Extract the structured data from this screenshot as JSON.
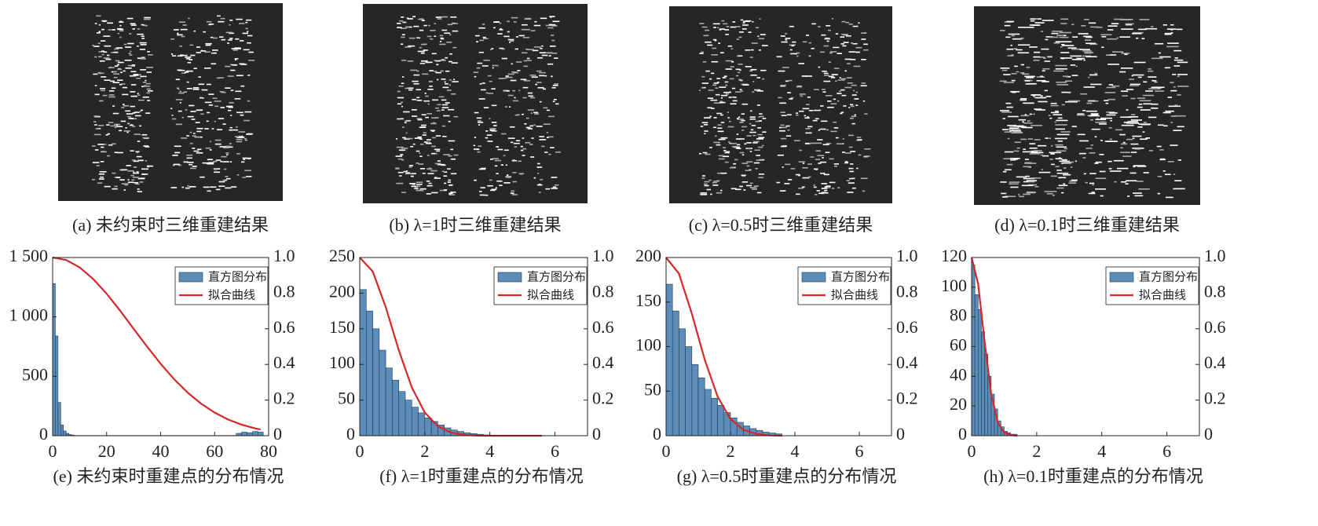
{
  "images": [
    {
      "caption": "(a) 未约束时三维重建结果"
    },
    {
      "caption": "(b) λ=1时三维重建结果"
    },
    {
      "caption": "(c) λ=0.5时三维重建结果"
    },
    {
      "caption": "(d) λ=0.1时三维重建结果"
    }
  ],
  "chart_data": [
    {
      "type": "histogram",
      "caption": "(e) 未约束时重建点的分布情况",
      "legend": "upper right",
      "bins": [
        0,
        1,
        2,
        3,
        4,
        5,
        6,
        7,
        8,
        68,
        70,
        72,
        74,
        76,
        78
      ],
      "xlim": [
        0,
        80
      ],
      "xticks": [
        0,
        20,
        40,
        60,
        80
      ],
      "ylim": [
        0,
        1500
      ],
      "yticks": [
        0,
        500,
        {
          "value": 1000,
          "label": "1 000"
        },
        {
          "value": 1500,
          "label": "1 500"
        }
      ],
      "y2lim": [
        0,
        1
      ],
      "y2ticks": [
        0,
        0.2,
        0.4,
        0.6,
        0.8,
        {
          "value": 1,
          "label": "1.0"
        }
      ],
      "series": [
        {
          "name": "直方图分布",
          "color": "#5b8db8",
          "values": [
            1280,
            840,
            280,
            90,
            40,
            20,
            10,
            5,
            2,
            20,
            30,
            25,
            35,
            30
          ]
        },
        {
          "name": "拟合曲线",
          "color": "#d62728",
          "axis": "y2",
          "x": [
            0,
            5,
            10,
            15,
            20,
            25,
            30,
            35,
            40,
            45,
            50,
            55,
            60,
            65,
            70,
            75,
            77
          ],
          "values": [
            1,
            0.986,
            0.945,
            0.88,
            0.797,
            0.702,
            0.6,
            0.5,
            0.404,
            0.317,
            0.242,
            0.18,
            0.13,
            0.091,
            0.062,
            0.041,
            0.035
          ]
        }
      ]
    },
    {
      "type": "histogram",
      "caption": "(f) λ=1时重建点的分布情况",
      "legend": "upper right",
      "bins": [
        0,
        0.2,
        0.4,
        0.6,
        0.8,
        1,
        1.2,
        1.4,
        1.6,
        1.8,
        2,
        2.2,
        2.4,
        2.6,
        2.8,
        3,
        3.2,
        3.4,
        3.6,
        3.8,
        4
      ],
      "xlim": [
        0,
        7
      ],
      "xticks": [
        0,
        2,
        4,
        6
      ],
      "ylim": [
        0,
        250
      ],
      "yticks": [
        0,
        50,
        100,
        150,
        200,
        250
      ],
      "y2lim": [
        0,
        1
      ],
      "y2ticks": [
        0,
        0.2,
        0.4,
        0.6,
        0.8,
        {
          "value": 1,
          "label": "1.0"
        }
      ],
      "series": [
        {
          "name": "直方图分布",
          "color": "#5b8db8",
          "values": [
            205,
            175,
            150,
            120,
            95,
            78,
            62,
            50,
            40,
            32,
            25,
            20,
            15,
            11,
            8,
            6,
            4,
            3,
            2,
            1
          ]
        },
        {
          "name": "拟合曲线",
          "color": "#d62728",
          "axis": "y2",
          "x": [
            0,
            0.4,
            0.8,
            1.2,
            1.6,
            2,
            2.4,
            2.8,
            3.2,
            3.6,
            4,
            4.4,
            4.8,
            5.2,
            5.6
          ],
          "values": [
            1,
            0.922,
            0.721,
            0.48,
            0.271,
            0.13,
            0.053,
            0.018,
            0.005,
            0.001,
            0,
            0,
            0,
            0,
            0
          ]
        }
      ]
    },
    {
      "type": "histogram",
      "caption": "(g) λ=0.5时重建点的分布情况",
      "legend": "upper right",
      "bins": [
        0,
        0.2,
        0.4,
        0.6,
        0.8,
        1,
        1.2,
        1.4,
        1.6,
        1.8,
        2,
        2.2,
        2.4,
        2.6,
        2.8,
        3,
        3.2,
        3.4,
        3.6
      ],
      "xlim": [
        0,
        7
      ],
      "xticks": [
        0,
        2,
        4,
        6
      ],
      "ylim": [
        0,
        200
      ],
      "yticks": [
        0,
        50,
        100,
        150,
        200
      ],
      "y2lim": [
        0,
        1
      ],
      "y2ticks": [
        0,
        0.2,
        0.4,
        0.6,
        0.8,
        {
          "value": 1,
          "label": "1.0"
        }
      ],
      "series": [
        {
          "name": "直方图分布",
          "color": "#5b8db8",
          "values": [
            170,
            140,
            120,
            100,
            80,
            65,
            52,
            42,
            34,
            26,
            20,
            15,
            11,
            8,
            6,
            4,
            3,
            2
          ]
        },
        {
          "name": "拟合曲线",
          "color": "#d62728",
          "axis": "y2",
          "x": [
            0,
            0.4,
            0.8,
            1.2,
            1.6,
            2,
            2.4,
            2.8,
            3.2,
            3.6
          ],
          "values": [
            1,
            0.91,
            0.685,
            0.427,
            0.22,
            0.094,
            0.033,
            0.01,
            0.002,
            0
          ]
        }
      ]
    },
    {
      "type": "histogram",
      "caption": "(h) λ=0.1时重建点的分布情况",
      "legend": "upper right",
      "bins": [
        0,
        0.1,
        0.2,
        0.3,
        0.4,
        0.5,
        0.6,
        0.7,
        0.8,
        0.9,
        1,
        1.1,
        1.2,
        1.3,
        1.4
      ],
      "xlim": [
        0,
        7
      ],
      "xticks": [
        0,
        2,
        4,
        6
      ],
      "ylim": [
        0,
        120
      ],
      "yticks": [
        0,
        20,
        40,
        60,
        80,
        100,
        120
      ],
      "y2lim": [
        0,
        1
      ],
      "y2ticks": [
        0,
        0.2,
        0.4,
        0.6,
        0.8,
        {
          "value": 1,
          "label": "1.0"
        }
      ],
      "series": [
        {
          "name": "直方图分布",
          "color": "#5b8db8",
          "values": [
            115,
            95,
            85,
            70,
            55,
            40,
            28,
            18,
            10,
            6,
            3,
            2,
            1,
            1
          ]
        },
        {
          "name": "拟合曲线",
          "color": "#d62728",
          "axis": "y2",
          "x": [
            0,
            0.2,
            0.4,
            0.6,
            0.8,
            1,
            1.2,
            1.4
          ],
          "values": [
            1,
            0.852,
            0.527,
            0.237,
            0.077,
            0.018,
            0.003,
            0
          ]
        }
      ]
    }
  ]
}
